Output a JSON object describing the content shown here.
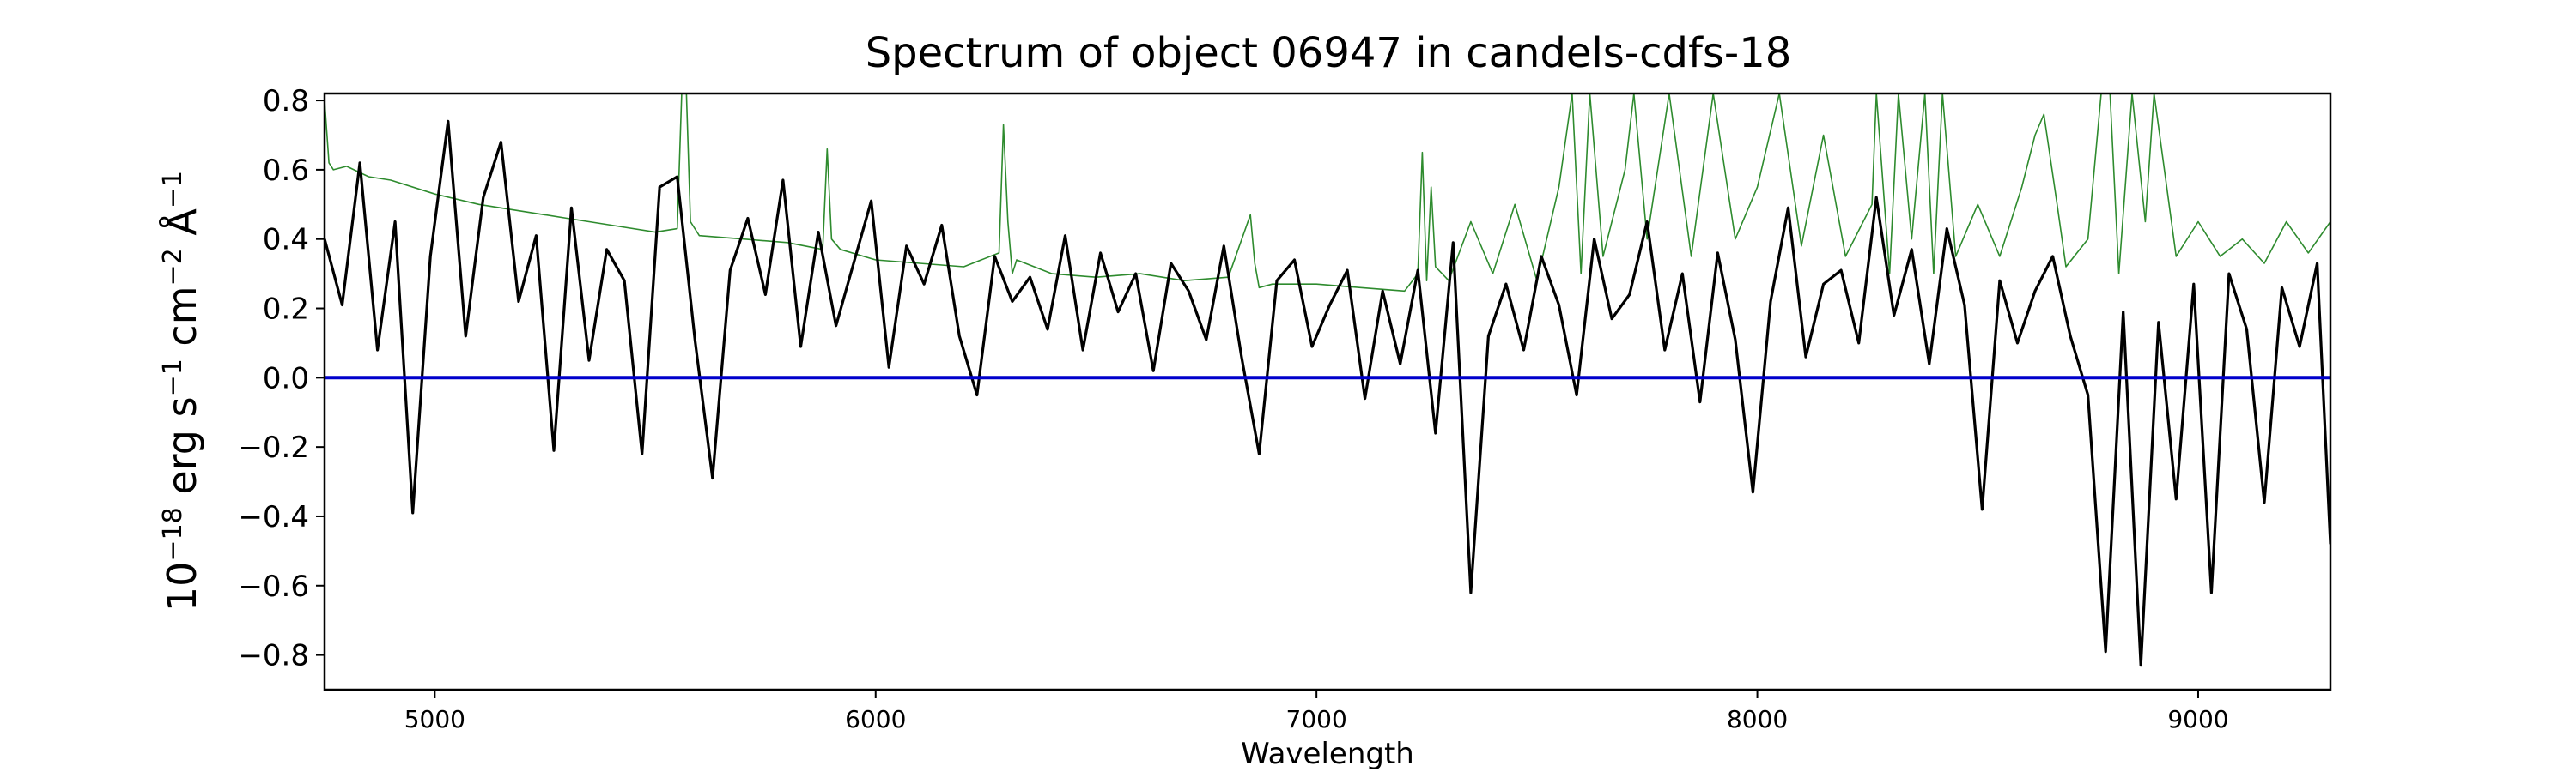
{
  "chart_data": {
    "type": "line",
    "title": "Spectrum of object 06947 in candels-cdfs-18",
    "xlabel": "Wavelength",
    "ylabel_parts": {
      "base": "10",
      "base_sup": "−18",
      "unit1": " erg s",
      "unit1_sup": "−1",
      "unit2": " cm",
      "unit2_sup": "−2",
      "unit3": " Å",
      "unit3_sup": "−1"
    },
    "xlim": [
      4750,
      9300
    ],
    "ylim": [
      -0.9,
      0.82
    ],
    "x_ticks": [
      5000,
      6000,
      7000,
      8000,
      9000
    ],
    "x_tick_labels": [
      "5000",
      "6000",
      "7000",
      "8000",
      "9000"
    ],
    "y_ticks": [
      -0.8,
      -0.6,
      -0.4,
      -0.2,
      0.0,
      0.2,
      0.4,
      0.6,
      0.8
    ],
    "y_tick_labels": [
      "−0.8",
      "−0.6",
      "−0.4",
      "−0.2",
      "0.0",
      "0.2",
      "0.4",
      "0.6",
      "0.8"
    ],
    "grid": false,
    "legend": "none",
    "colors": {
      "flux": "#000000",
      "error": "#2e8b2e",
      "zero": "#0000cc"
    },
    "series": [
      {
        "role": "flux",
        "x": [
          4750,
          4790,
          4830,
          4870,
          4910,
          4950,
          4990,
          5030,
          5070,
          5110,
          5150,
          5190,
          5230,
          5270,
          5310,
          5350,
          5390,
          5430,
          5470,
          5510,
          5550,
          5590,
          5630,
          5670,
          5710,
          5750,
          5790,
          5830,
          5870,
          5910,
          5950,
          5990,
          6030,
          6070,
          6110,
          6150,
          6190,
          6230,
          6270,
          6310,
          6350,
          6390,
          6430,
          6470,
          6510,
          6550,
          6590,
          6630,
          6670,
          6710,
          6750,
          6790,
          6830,
          6870,
          6910,
          6950,
          6990,
          7030,
          7070,
          7110,
          7150,
          7190,
          7230,
          7270,
          7310,
          7350,
          7390,
          7430,
          7470,
          7510,
          7550,
          7590,
          7630,
          7670,
          7710,
          7750,
          7790,
          7830,
          7870,
          7910,
          7950,
          7990,
          8030,
          8070,
          8110,
          8150,
          8190,
          8230,
          8270,
          8310,
          8350,
          8390,
          8430,
          8470,
          8510,
          8550,
          8590,
          8630,
          8670,
          8710,
          8750,
          8790,
          8830,
          8870,
          8910,
          8950,
          8990,
          9030,
          9070,
          9110,
          9150,
          9190,
          9230,
          9270,
          9300
        ],
        "y": [
          0.4,
          0.21,
          0.62,
          0.08,
          0.45,
          -0.39,
          0.35,
          0.74,
          0.12,
          0.52,
          0.68,
          0.22,
          0.41,
          -0.21,
          0.49,
          0.05,
          0.37,
          0.28,
          -0.22,
          0.55,
          0.58,
          0.11,
          -0.29,
          0.31,
          0.46,
          0.24,
          0.57,
          0.09,
          0.42,
          0.15,
          0.33,
          0.51,
          0.03,
          0.38,
          0.27,
          0.44,
          0.12,
          -0.05,
          0.35,
          0.22,
          0.29,
          0.14,
          0.41,
          0.08,
          0.36,
          0.19,
          0.3,
          0.02,
          0.33,
          0.25,
          0.11,
          0.38,
          0.06,
          -0.22,
          0.28,
          0.34,
          0.09,
          0.21,
          0.31,
          -0.06,
          0.25,
          0.04,
          0.31,
          -0.16,
          0.39,
          -0.62,
          0.12,
          0.27,
          0.08,
          0.35,
          0.21,
          -0.05,
          0.4,
          0.17,
          0.24,
          0.45,
          0.08,
          0.3,
          -0.07,
          0.36,
          0.11,
          -0.33,
          0.22,
          0.49,
          0.06,
          0.27,
          0.31,
          0.1,
          0.52,
          0.18,
          0.37,
          0.04,
          0.43,
          0.21,
          -0.38,
          0.28,
          0.1,
          0.25,
          0.35,
          0.12,
          -0.05,
          -0.79,
          0.19,
          -0.83,
          0.16,
          -0.35,
          0.27,
          -0.62,
          0.3,
          0.14,
          -0.36,
          0.26,
          0.09,
          0.33,
          -0.48
        ]
      },
      {
        "role": "error",
        "x": [
          4750,
          4760,
          4770,
          4800,
          4850,
          4900,
          5000,
          5100,
          5200,
          5300,
          5400,
          5500,
          5550,
          5560,
          5570,
          5580,
          5600,
          5700,
          5800,
          5880,
          5890,
          5900,
          5920,
          6000,
          6100,
          6200,
          6280,
          6290,
          6300,
          6310,
          6320,
          6400,
          6500,
          6600,
          6700,
          6800,
          6850,
          6860,
          6870,
          6900,
          7000,
          7100,
          7200,
          7230,
          7240,
          7250,
          7260,
          7270,
          7300,
          7350,
          7400,
          7450,
          7500,
          7550,
          7580,
          7600,
          7620,
          7650,
          7700,
          7720,
          7750,
          7800,
          7850,
          7900,
          7950,
          8000,
          8050,
          8100,
          8150,
          8200,
          8260,
          8270,
          8300,
          8320,
          8350,
          8380,
          8400,
          8420,
          8450,
          8500,
          8550,
          8600,
          8630,
          8650,
          8680,
          8700,
          8750,
          8780,
          8800,
          8820,
          8850,
          8880,
          8900,
          8950,
          9000,
          9050,
          9100,
          9150,
          9200,
          9250,
          9300
        ],
        "y": [
          0.8,
          0.62,
          0.6,
          0.61,
          0.58,
          0.57,
          0.53,
          0.5,
          0.48,
          0.46,
          0.44,
          0.42,
          0.43,
          0.82,
          0.85,
          0.45,
          0.41,
          0.4,
          0.39,
          0.37,
          0.66,
          0.4,
          0.37,
          0.34,
          0.33,
          0.32,
          0.36,
          0.73,
          0.45,
          0.3,
          0.34,
          0.3,
          0.29,
          0.3,
          0.28,
          0.29,
          0.47,
          0.33,
          0.26,
          0.27,
          0.27,
          0.26,
          0.25,
          0.3,
          0.65,
          0.28,
          0.55,
          0.32,
          0.28,
          0.45,
          0.3,
          0.5,
          0.28,
          0.55,
          0.82,
          0.3,
          0.82,
          0.35,
          0.6,
          0.82,
          0.4,
          0.82,
          0.35,
          0.82,
          0.4,
          0.55,
          0.82,
          0.38,
          0.7,
          0.35,
          0.5,
          0.82,
          0.3,
          0.82,
          0.4,
          0.82,
          0.3,
          0.82,
          0.35,
          0.5,
          0.35,
          0.55,
          0.7,
          0.76,
          0.5,
          0.32,
          0.4,
          0.82,
          0.82,
          0.3,
          0.82,
          0.45,
          0.82,
          0.35,
          0.45,
          0.35,
          0.4,
          0.33,
          0.45,
          0.36,
          0.45
        ]
      },
      {
        "role": "zero",
        "x": [
          4750,
          9300
        ],
        "y": [
          0.0,
          0.0
        ]
      }
    ]
  }
}
